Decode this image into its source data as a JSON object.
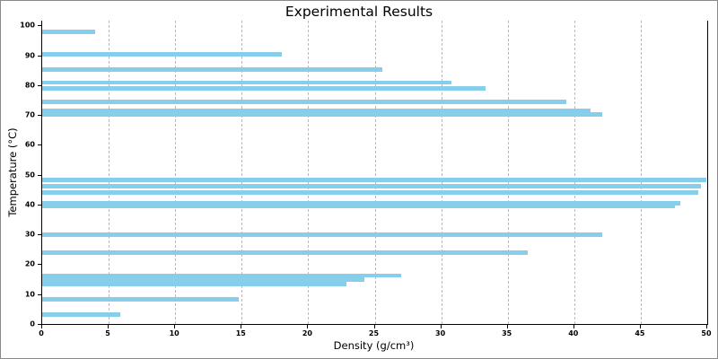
{
  "chart_data": {
    "type": "bar",
    "orientation": "horizontal",
    "title": "Experimental Results",
    "xlabel": "Density (g/cm³)",
    "ylabel": "Temperature (°C)",
    "xlim": [
      0,
      50
    ],
    "ylim": [
      0,
      101.6
    ],
    "x_ticks": [
      0,
      5,
      10,
      15,
      20,
      25,
      30,
      35,
      40,
      45,
      50
    ],
    "y_ticks": [
      0,
      10,
      20,
      30,
      40,
      50,
      60,
      70,
      80,
      90,
      100
    ],
    "grid": "vertical-dashed",
    "legend": "none",
    "bar_color": "#87CEEB",
    "grid_color": "#b9b9b9",
    "bar_height_units": 1.4,
    "points": [
      {
        "temperature": 97.9,
        "density": 4.0
      },
      {
        "temperature": 90.4,
        "density": 18.0
      },
      {
        "temperature": 85.3,
        "density": 25.6
      },
      {
        "temperature": 80.9,
        "density": 30.8
      },
      {
        "temperature": 79.0,
        "density": 33.3
      },
      {
        "temperature": 74.4,
        "density": 39.4
      },
      {
        "temperature": 71.3,
        "density": 41.2
      },
      {
        "temperature": 70.1,
        "density": 42.1
      },
      {
        "temperature": 48.3,
        "density": 49.9
      },
      {
        "temperature": 46.2,
        "density": 49.5
      },
      {
        "temperature": 44.1,
        "density": 49.3
      },
      {
        "temperature": 40.4,
        "density": 48.0
      },
      {
        "temperature": 39.4,
        "density": 47.6
      },
      {
        "temperature": 29.9,
        "density": 42.1
      },
      {
        "temperature": 23.9,
        "density": 36.5
      },
      {
        "temperature": 16.2,
        "density": 27.0
      },
      {
        "temperature": 14.8,
        "density": 24.2
      },
      {
        "temperature": 13.4,
        "density": 22.9
      },
      {
        "temperature": 8.2,
        "density": 14.8
      },
      {
        "temperature": 3.2,
        "density": 5.9
      }
    ]
  }
}
